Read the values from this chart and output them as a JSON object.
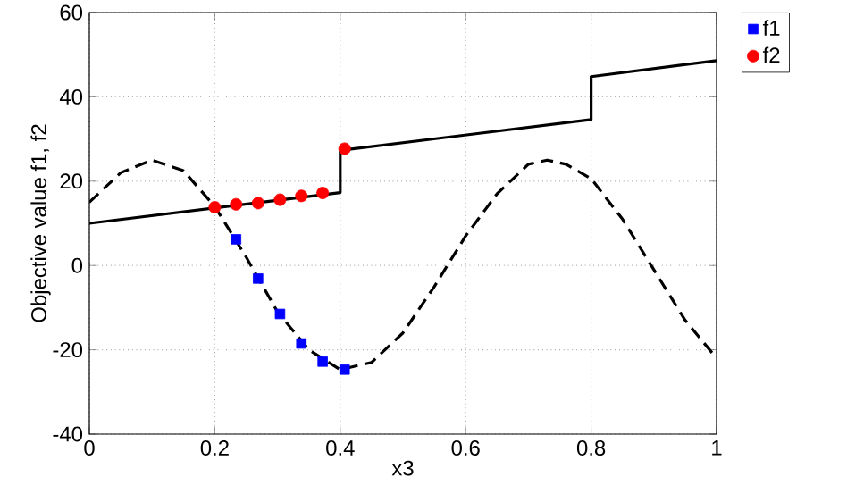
{
  "chart_data": {
    "type": "line",
    "xlabel": "x3",
    "ylabel": "Objective value f1, f2",
    "xlim": [
      0,
      1
    ],
    "ylim": [
      -40,
      60
    ],
    "xticks": [
      0,
      0.2,
      0.4,
      0.6,
      0.8,
      1
    ],
    "yticks": [
      -40,
      -20,
      0,
      20,
      40,
      60
    ],
    "grid": true,
    "legend": "top right",
    "series": [
      {
        "color": "#000000",
        "line_style": "solid",
        "marker": "none",
        "x": [
          0,
          0.4,
          0.4,
          0.8,
          0.8,
          1
        ],
        "values": [
          10,
          17.3,
          27.3,
          34.6,
          44.8,
          48.6
        ]
      },
      {
        "color": "#000000",
        "line_style": "dashed",
        "marker": "none",
        "x": [
          0,
          0.05,
          0.1,
          0.15,
          0.2,
          0.25,
          0.3,
          0.35,
          0.4,
          0.45,
          0.5,
          0.55,
          0.6,
          0.65,
          0.7,
          0.73,
          0.76,
          0.8,
          0.85,
          0.9,
          0.95,
          1
        ],
        "values": [
          15,
          22,
          25,
          22.5,
          14,
          2,
          -11,
          -20,
          -24.7,
          -23,
          -16,
          -5,
          7,
          17,
          24,
          25,
          24,
          20.6,
          11,
          -1,
          -13,
          -22
        ]
      },
      {
        "type": "scatter",
        "name": "f1",
        "color": "#0000ff",
        "marker": "square",
        "x": [
          0.234,
          0.269,
          0.304,
          0.338,
          0.372,
          0.407
        ],
        "values": [
          6.2,
          -3.1,
          -11.5,
          -18.5,
          -22.8,
          -24.7
        ]
      },
      {
        "type": "scatter",
        "name": "f2",
        "color": "#ff0000",
        "marker": "circle",
        "x": [
          0.2,
          0.234,
          0.269,
          0.304,
          0.338,
          0.372,
          0.407
        ],
        "values": [
          13.8,
          14.5,
          14.8,
          15.6,
          16.5,
          17.2,
          27.7
        ]
      }
    ]
  }
}
